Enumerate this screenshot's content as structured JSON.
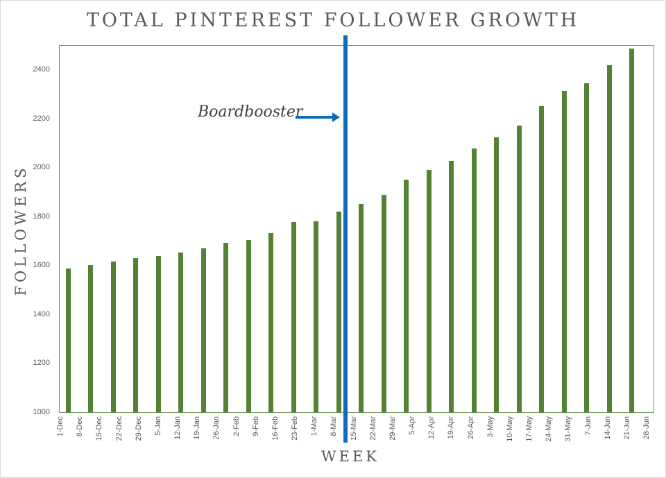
{
  "chart_data": {
    "type": "bar",
    "title": "TOTAL PINTEREST FOLLOWER GROWTH",
    "xlabel": "WEEK",
    "ylabel": "FOLLOWERS",
    "ylim": [
      1000,
      2500
    ],
    "yticks": [
      1000,
      1200,
      1400,
      1600,
      1800,
      2000,
      2200,
      2400
    ],
    "grid": false,
    "legend": null,
    "categories": [
      "1-Dec",
      "8-Dec",
      "15-Dec",
      "22-Dec",
      "29-Dec",
      "5-Jan",
      "12-Jan",
      "19-Jan",
      "26-Jan",
      "2-Feb",
      "9-Feb",
      "16-Feb",
      "23-Feb",
      "1-Mar",
      "8-Mar",
      "15-Mar",
      "22-Mar",
      "29-Mar",
      "5-Apr",
      "12-Apr",
      "19-Apr",
      "26-Apr",
      "3-May",
      "10-May",
      "17-May",
      "24-May",
      "31-May",
      "7-Jun",
      "14-Jun",
      "21-Jun",
      "28-Jun"
    ],
    "series": [
      {
        "name": "Followers",
        "color": "#548235",
        "values": [
          1590,
          1603,
          1618,
          1631,
          1640,
          1656,
          1672,
          1693,
          1707,
          1735,
          1780,
          1781,
          1821,
          1853,
          1889,
          1953,
          1993,
          2028,
          2079,
          2124,
          2172,
          2252,
          2316,
          2345,
          2420,
          2487
        ]
      }
    ],
    "annotations": [
      {
        "text": "Boardbooster",
        "type": "vertical-line-with-arrow",
        "position": "between 8-Mar and 15-Mar",
        "color": "#0e6db7"
      }
    ]
  },
  "colors": {
    "bar": "#548235",
    "marker_line": "#0e6db7",
    "plot_border": "#6f9a55",
    "text": "#595959"
  }
}
